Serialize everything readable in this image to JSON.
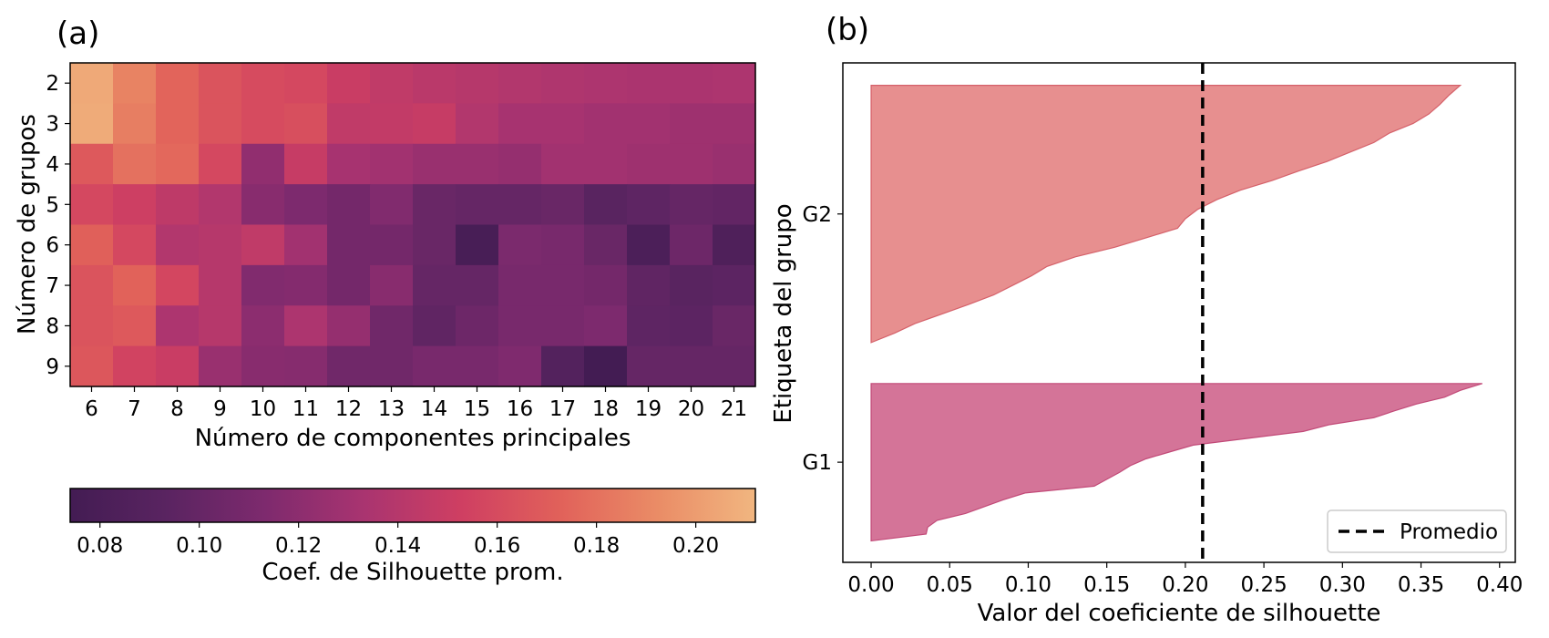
{
  "panels": {
    "a": {
      "label": "(a)"
    },
    "b": {
      "label": "(b)"
    }
  },
  "colors": {
    "g1_fill": "#cd5c86",
    "g1_edge": "#c24a78",
    "g2_fill": "#e37b7b",
    "g2_edge": "#d5616a",
    "mean_line": "#000000",
    "colormap_flare": [
      "#431c53",
      "#5a2461",
      "#7e2a6e",
      "#a93470",
      "#cf3f62",
      "#e1615a",
      "#ea8c66",
      "#f1b680"
    ]
  },
  "chart_data": [
    {
      "type": "heatmap",
      "xlabel": "Número de componentes principales",
      "ylabel": "Número de grupos",
      "x_categories": [
        "6",
        "7",
        "8",
        "9",
        "10",
        "11",
        "12",
        "13",
        "14",
        "15",
        "16",
        "17",
        "18",
        "19",
        "20",
        "21"
      ],
      "y_categories": [
        "2",
        "3",
        "4",
        "5",
        "6",
        "7",
        "8",
        "9"
      ],
      "values": [
        [
          0.206,
          0.188,
          0.174,
          0.165,
          0.16,
          0.158,
          0.15,
          0.145,
          0.142,
          0.14,
          0.138,
          0.136,
          0.135,
          0.134,
          0.134,
          0.135
        ],
        [
          0.207,
          0.186,
          0.174,
          0.165,
          0.16,
          0.162,
          0.145,
          0.146,
          0.148,
          0.138,
          0.132,
          0.132,
          0.13,
          0.13,
          0.128,
          0.128
        ],
        [
          0.168,
          0.18,
          0.176,
          0.158,
          0.122,
          0.148,
          0.132,
          0.13,
          0.126,
          0.126,
          0.124,
          0.13,
          0.13,
          0.128,
          0.128,
          0.126
        ],
        [
          0.158,
          0.152,
          0.144,
          0.138,
          0.118,
          0.113,
          0.108,
          0.115,
          0.102,
          0.1,
          0.1,
          0.102,
          0.093,
          0.096,
          0.1,
          0.098
        ],
        [
          0.172,
          0.158,
          0.138,
          0.14,
          0.145,
          0.13,
          0.108,
          0.108,
          0.102,
          0.078,
          0.112,
          0.11,
          0.102,
          0.082,
          0.104,
          0.084
        ],
        [
          0.165,
          0.173,
          0.157,
          0.14,
          0.115,
          0.116,
          0.108,
          0.118,
          0.1,
          0.1,
          0.11,
          0.11,
          0.108,
          0.097,
          0.093,
          0.095
        ],
        [
          0.165,
          0.168,
          0.135,
          0.14,
          0.12,
          0.135,
          0.124,
          0.106,
          0.097,
          0.104,
          0.11,
          0.11,
          0.113,
          0.096,
          0.095,
          0.102
        ],
        [
          0.167,
          0.155,
          0.15,
          0.126,
          0.118,
          0.117,
          0.106,
          0.106,
          0.11,
          0.11,
          0.114,
          0.088,
          0.074,
          0.1,
          0.1,
          0.1
        ]
      ],
      "colorbar": {
        "label": "Coef. de Silhouette prom.",
        "range": [
          0.074,
          0.212
        ],
        "ticks": [
          "0.08",
          "0.10",
          "0.12",
          "0.14",
          "0.16",
          "0.18",
          "0.20"
        ]
      }
    },
    {
      "type": "area",
      "xlabel": "Valor del coeficiente de silhouette",
      "ylabel": "Etiqueta del grupo",
      "xlim": [
        -0.018,
        0.41
      ],
      "x_ticks": [
        "0.00",
        "0.05",
        "0.10",
        "0.15",
        "0.20",
        "0.25",
        "0.30",
        "0.35",
        "0.40"
      ],
      "grid": false,
      "legend": {
        "position": "bottom-right",
        "entries": [
          "Promedio"
        ]
      },
      "mean_line": 0.211,
      "series": [
        {
          "name": "G1",
          "tick_label": "G1",
          "sorted_values": [
            0.0,
            0.035,
            0.036,
            0.042,
            0.06,
            0.072,
            0.084,
            0.098,
            0.142,
            0.15,
            0.158,
            0.165,
            0.175,
            0.19,
            0.205,
            0.24,
            0.275,
            0.292,
            0.32,
            0.333,
            0.347,
            0.365,
            0.375,
            0.389
          ]
        },
        {
          "name": "G2",
          "tick_label": "G2",
          "sorted_values": [
            0.0,
            0.015,
            0.028,
            0.045,
            0.062,
            0.078,
            0.09,
            0.102,
            0.112,
            0.13,
            0.155,
            0.175,
            0.195,
            0.2,
            0.208,
            0.22,
            0.235,
            0.255,
            0.272,
            0.29,
            0.305,
            0.32,
            0.33,
            0.345,
            0.355,
            0.362,
            0.368,
            0.375
          ]
        }
      ]
    }
  ]
}
